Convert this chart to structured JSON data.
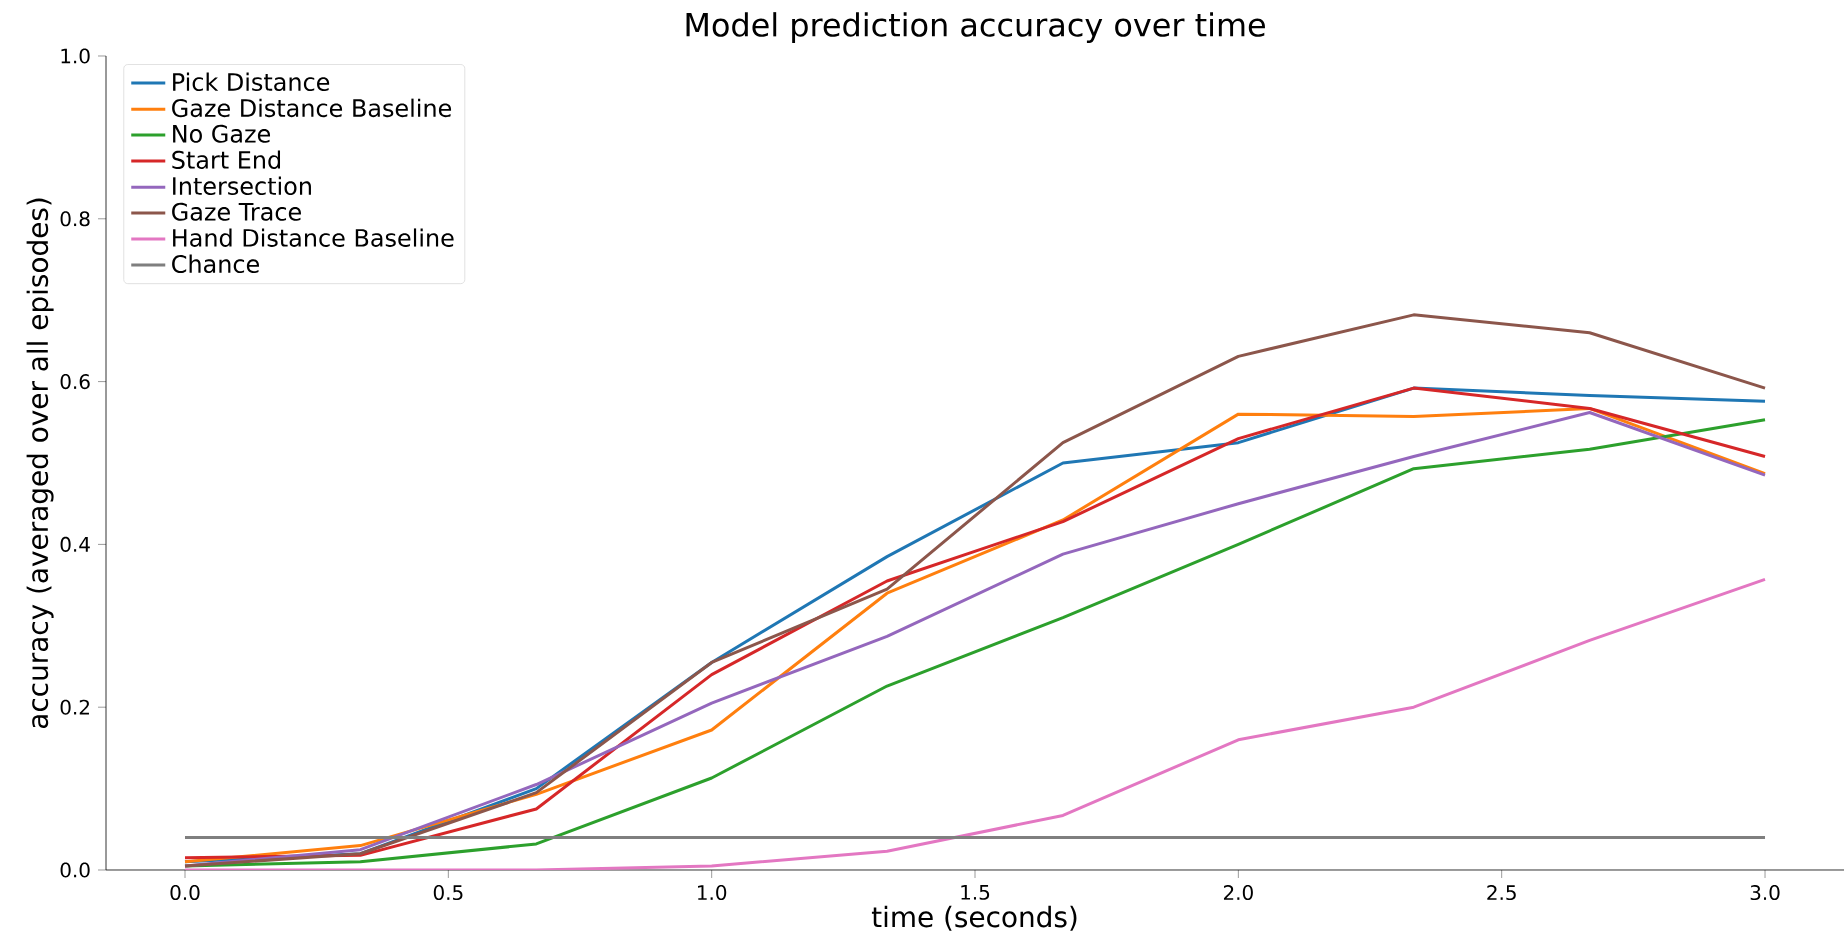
{
  "chart_data": {
    "type": "line",
    "title": "Model prediction accuracy over time",
    "xlabel": "time (seconds)",
    "ylabel": "accuracy (averaged over all episodes)",
    "x": [
      0,
      0.333,
      0.667,
      1,
      1.333,
      1.667,
      2,
      2.333,
      2.667,
      3
    ],
    "series": [
      {
        "name": "Pick Distance",
        "color": "#1f77b4",
        "values": [
          0.01,
          0.02,
          0.1,
          0.255,
          0.385,
          0.5,
          0.525,
          0.592,
          0.583,
          0.576
        ]
      },
      {
        "name": "Gaze Distance Baseline",
        "color": "#ff7f0e",
        "values": [
          0.01,
          0.03,
          0.093,
          0.172,
          0.34,
          0.43,
          0.56,
          0.557,
          0.567,
          0.487
        ]
      },
      {
        "name": "No Gaze",
        "color": "#2ca02c",
        "values": [
          0.005,
          0.01,
          0.032,
          0.113,
          0.226,
          0.31,
          0.4,
          0.493,
          0.517,
          0.553
        ]
      },
      {
        "name": "Start End",
        "color": "#d62728",
        "values": [
          0.015,
          0.018,
          0.075,
          0.24,
          0.355,
          0.428,
          0.53,
          0.592,
          0.567,
          0.508
        ]
      },
      {
        "name": "Intersection",
        "color": "#9467bd",
        "values": [
          0.005,
          0.025,
          0.105,
          0.205,
          0.287,
          0.388,
          0.45,
          0.508,
          0.562,
          0.485
        ]
      },
      {
        "name": "Gaze Trace",
        "color": "#8c564b",
        "values": [
          0.005,
          0.02,
          0.095,
          0.255,
          0.345,
          0.525,
          0.631,
          0.682,
          0.66,
          0.592
        ]
      },
      {
        "name": "Hand Distance Baseline",
        "color": "#e377c2",
        "values": [
          0,
          0,
          0,
          0.005,
          0.023,
          0.067,
          0.16,
          0.2,
          0.282,
          0.357
        ]
      },
      {
        "name": "Chance",
        "color": "#7f7f7f",
        "values": [
          0.04,
          0.04,
          0.04,
          0.04,
          0.04,
          0.04,
          0.04,
          0.04,
          0.04,
          0.04
        ]
      }
    ],
    "xlim": [
      -0.15,
      3.15
    ],
    "ylim": [
      0,
      1
    ],
    "xticks": [
      {
        "value": 0,
        "label": "0.0"
      },
      {
        "value": 0.5,
        "label": "0.5"
      },
      {
        "value": 1,
        "label": "1.0"
      },
      {
        "value": 1.5,
        "label": "1.5"
      },
      {
        "value": 2,
        "label": "2.0"
      },
      {
        "value": 2.5,
        "label": "2.5"
      },
      {
        "value": 3,
        "label": "3.0"
      }
    ],
    "yticks": [
      {
        "value": 0,
        "label": "0.0"
      },
      {
        "value": 0.2,
        "label": "0.2"
      },
      {
        "value": 0.4,
        "label": "0.4"
      },
      {
        "value": 0.6,
        "label": "0.6"
      },
      {
        "value": 0.8,
        "label": "0.8"
      },
      {
        "value": 1,
        "label": "1.0"
      }
    ],
    "legend": "top left",
    "grid": false
  }
}
